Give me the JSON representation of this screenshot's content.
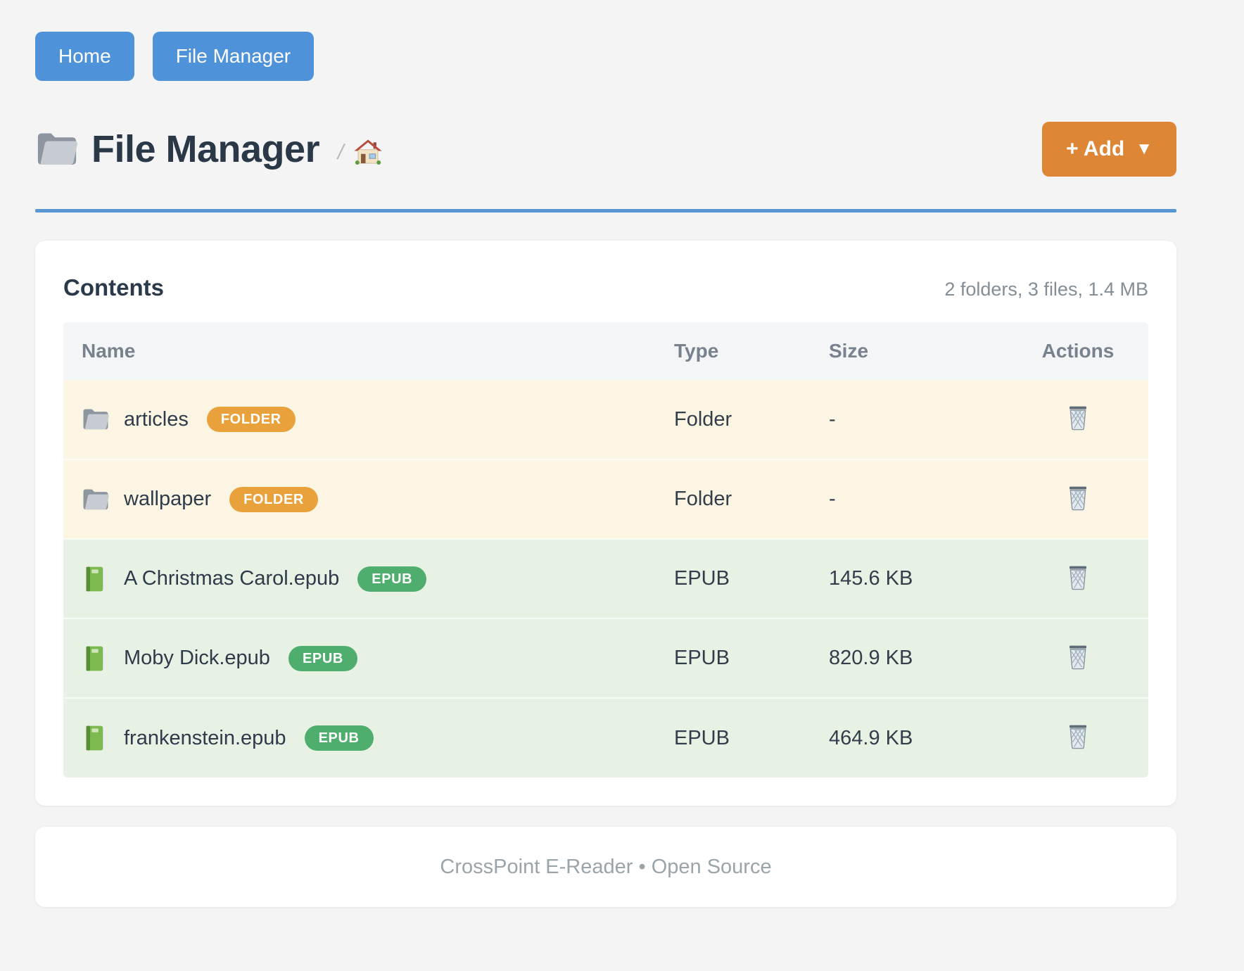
{
  "nav": {
    "home_label": "Home",
    "file_manager_label": "File Manager"
  },
  "header": {
    "title": "File Manager",
    "title_icon": "folder-icon",
    "breadcrumb_separator": "/",
    "breadcrumb_home_icon": "house-icon",
    "add_button": {
      "label": "+ Add",
      "caret": "▼"
    }
  },
  "contents": {
    "title": "Contents",
    "summary": "2 folders, 3 files, 1.4 MB",
    "columns": [
      "Name",
      "Type",
      "Size",
      "Actions"
    ],
    "rows": [
      {
        "kind": "folder",
        "icon": "folder-icon",
        "name": "articles",
        "badge": "FOLDER",
        "type": "Folder",
        "size": "-",
        "action_icon": "wastebasket-icon"
      },
      {
        "kind": "folder",
        "icon": "folder-icon",
        "name": "wallpaper",
        "badge": "FOLDER",
        "type": "Folder",
        "size": "-",
        "action_icon": "wastebasket-icon"
      },
      {
        "kind": "file",
        "icon": "book-icon",
        "name": "A Christmas Carol.epub",
        "badge": "EPUB",
        "type": "EPUB",
        "size": "145.6 KB",
        "action_icon": "wastebasket-icon"
      },
      {
        "kind": "file",
        "icon": "book-icon",
        "name": "Moby Dick.epub",
        "badge": "EPUB",
        "type": "EPUB",
        "size": "820.9 KB",
        "action_icon": "wastebasket-icon"
      },
      {
        "kind": "file",
        "icon": "book-icon",
        "name": "frankenstein.epub",
        "badge": "EPUB",
        "type": "EPUB",
        "size": "464.9 KB",
        "action_icon": "wastebasket-icon"
      }
    ]
  },
  "footer": {
    "text": "CrossPoint E-Reader • Open Source"
  },
  "colors": {
    "nav_button": "#4e92d9",
    "add_button": "#dd8636",
    "rule": "#5a96d3",
    "folder_badge": "#e9a23b",
    "epub_badge": "#4fae6d",
    "folder_row_bg": "#fdf5e3",
    "file_row_bg": "#e7f2e5"
  }
}
